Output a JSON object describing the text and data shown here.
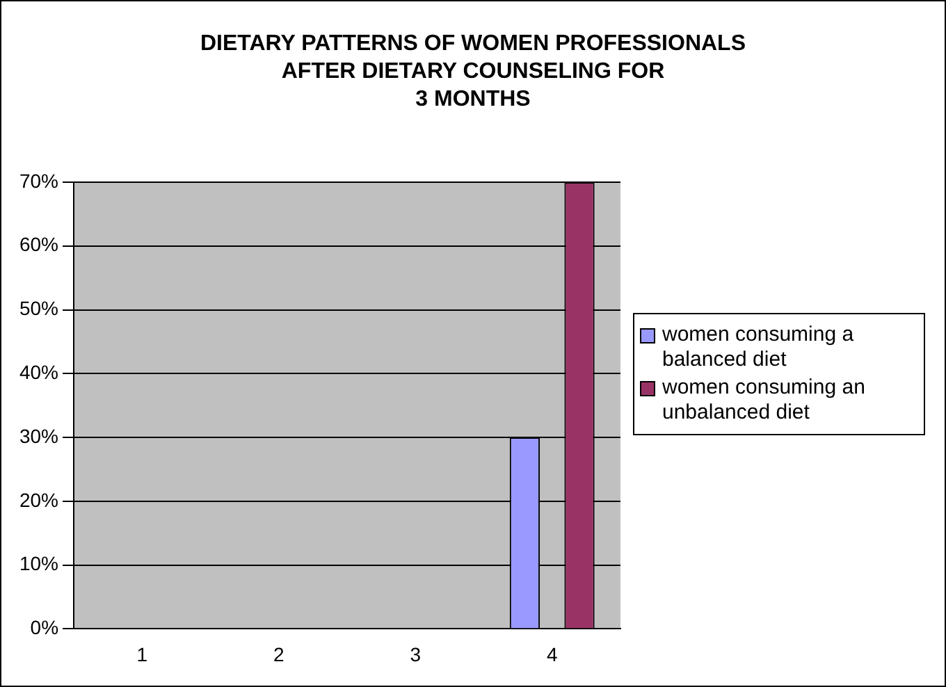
{
  "chart_data": {
    "type": "bar",
    "title": "DIETARY PATTERNS OF WOMEN PROFESSIONALS\nAFTER DIETARY COUNSELING FOR\n3 MONTHS",
    "categories": [
      "1",
      "2",
      "3",
      "4"
    ],
    "series": [
      {
        "name": "women consuming a balanced diet",
        "color": "#9999ff",
        "values": [
          null,
          null,
          null,
          30
        ]
      },
      {
        "name": "women consuming an unbalanced diet",
        "color": "#993366",
        "values": [
          null,
          null,
          null,
          70
        ]
      }
    ],
    "ylim": [
      0,
      70
    ],
    "yticks": [
      {
        "value": 0,
        "label": "0%"
      },
      {
        "value": 10,
        "label": "10%"
      },
      {
        "value": 20,
        "label": "20%"
      },
      {
        "value": 30,
        "label": "30%"
      },
      {
        "value": 40,
        "label": "40%"
      },
      {
        "value": 50,
        "label": "50%"
      },
      {
        "value": 60,
        "label": "60%"
      },
      {
        "value": 70,
        "label": "70%"
      }
    ],
    "grid": "y",
    "legend": "right"
  }
}
